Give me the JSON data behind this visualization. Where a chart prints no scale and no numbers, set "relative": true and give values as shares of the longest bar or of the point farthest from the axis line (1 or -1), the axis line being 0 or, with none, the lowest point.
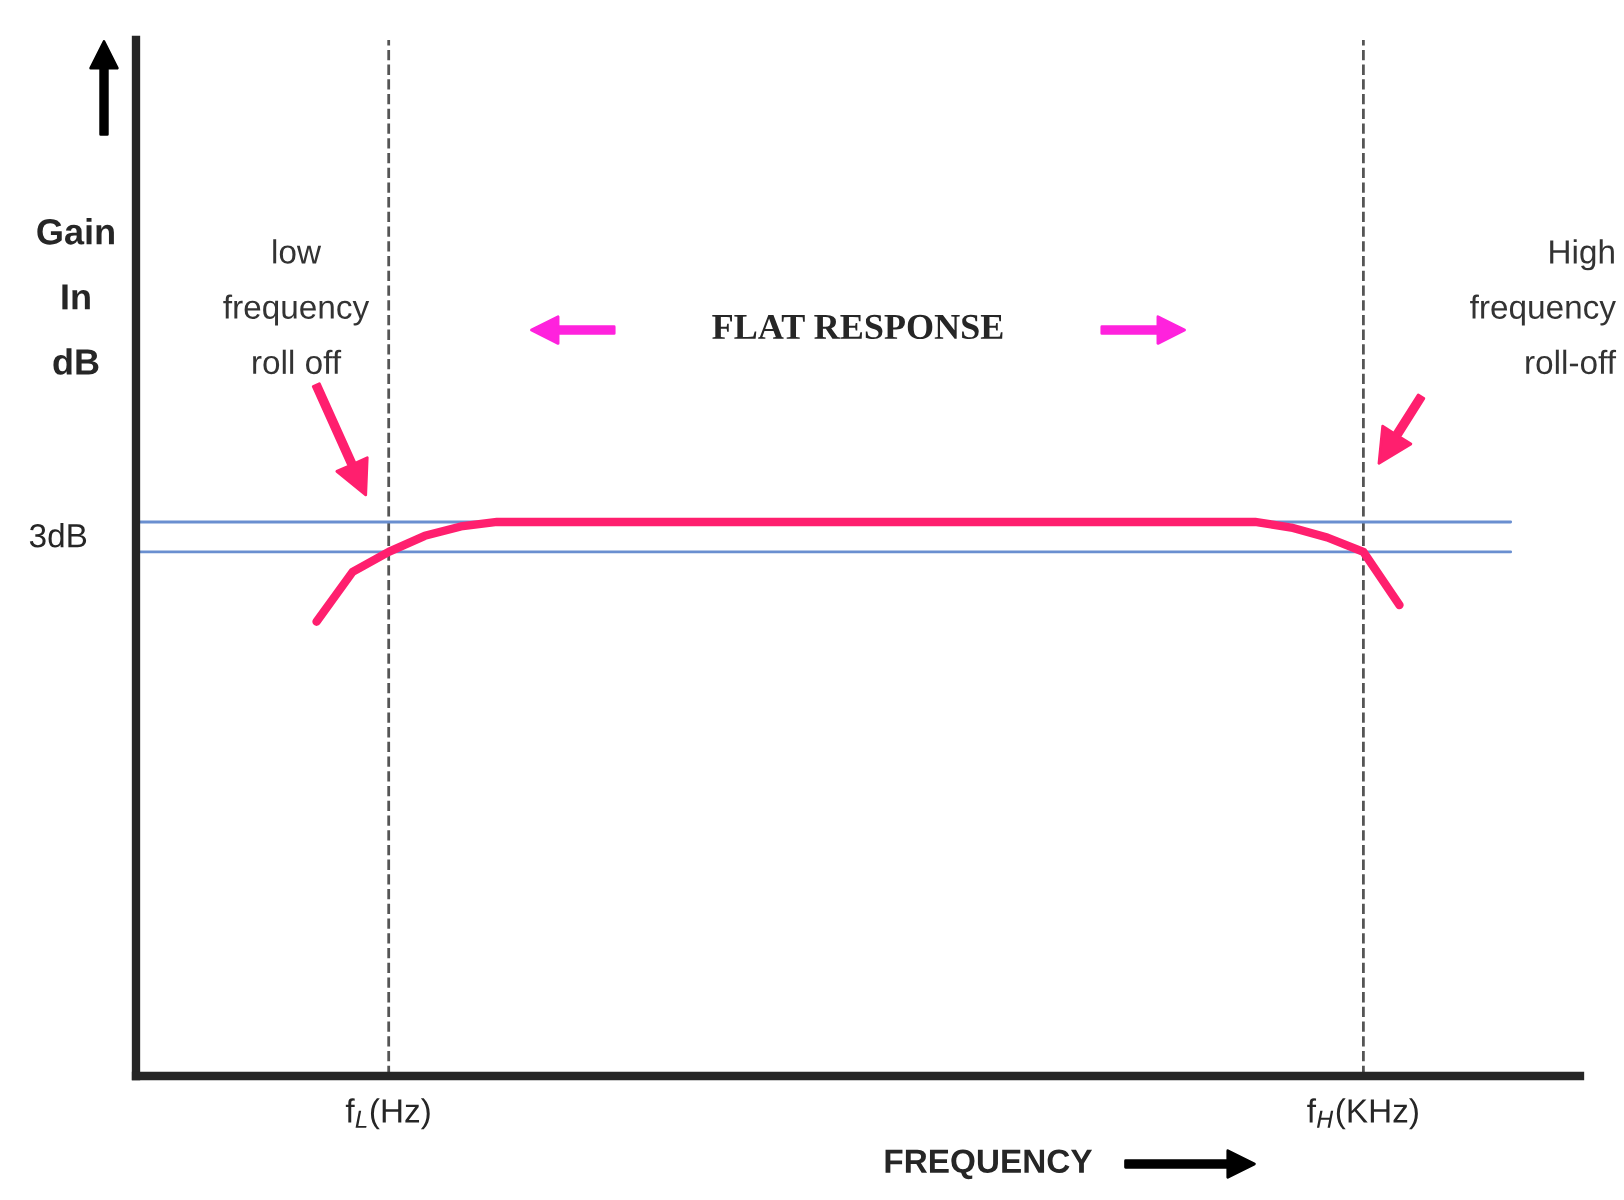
{
  "chart_data": {
    "type": "line",
    "relative": true,
    "xlabel": "FREQUENCY",
    "categories": [
      null,
      null,
      null,
      null,
      null,
      null,
      null,
      "f$_{L}$(Hz)",
      null,
      null,
      null,
      null,
      null,
      null,
      null,
      null,
      null,
      null,
      null,
      null,
      null,
      null,
      null,
      null,
      null,
      null,
      null,
      null,
      null,
      null,
      null,
      null,
      null,
      null,
      "f$_{H}$(KHz)",
      null,
      null,
      null,
      null,
      null,
      null
    ],
    "series": [
      {
        "color": "#ff1f6e",
        "values": [
          null,
          null,
          null,
          null,
          null,
          0.82,
          0.91,
          0.946,
          0.975,
          0.992,
          1,
          1,
          1,
          1,
          1,
          1,
          1,
          1,
          1,
          1,
          1,
          1,
          1,
          1,
          1,
          1,
          1,
          1,
          1,
          1,
          1,
          1,
          0.99,
          0.972,
          0.946,
          0.85,
          null,
          null,
          null,
          null,
          null
        ]
      }
    ],
    "ref_lines": [
      {
        "axis": "x",
        "value": "f$_{L}$(Hz)",
        "color": "#555555",
        "line_style": "dashed"
      },
      {
        "axis": "x",
        "value": "f$_{H}$(KHz)",
        "color": "#555555",
        "line_style": "dashed"
      },
      {
        "axis": "y",
        "value": 1,
        "color": "#6a8fd0",
        "line_style": "solid",
        "label": "3dB"
      },
      {
        "axis": "y",
        "value": 0.946,
        "color": "#6a8fd0",
        "line_style": "solid"
      }
    ],
    "annotations": [
      "low\nfrequency\nroll off",
      "High\nfrequency\nroll-off",
      "FLAT RESPONSE",
      "Gain\nIn\ndB"
    ],
    "grid": false,
    "legend": false
  }
}
